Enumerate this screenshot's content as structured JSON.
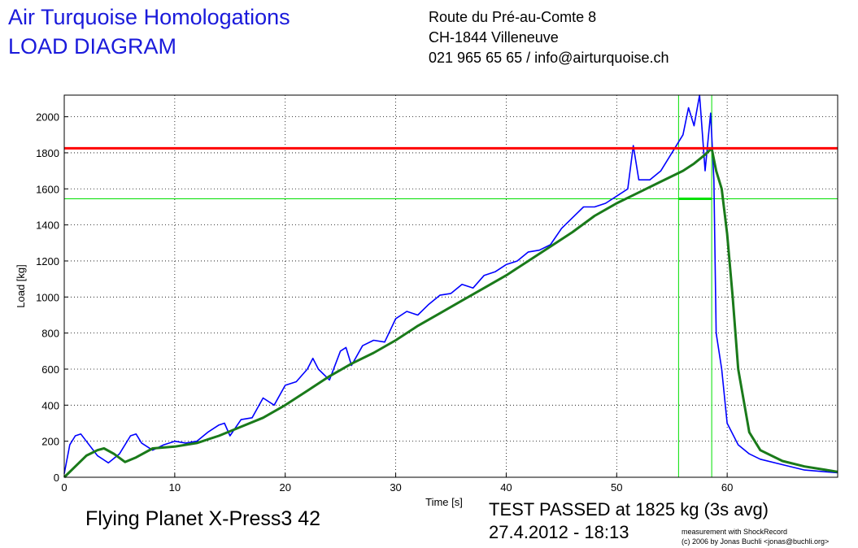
{
  "header": {
    "title_line1": "Air Turquoise Homologations",
    "title_line2": "LOAD DIAGRAM",
    "address_line1": "Route du Pré-au-Comte 8",
    "address_line2": "CH-1844 Villeneuve",
    "address_line3": "021 965 65 65 / info@airturquoise.ch"
  },
  "footer": {
    "glider": "Flying Planet X-Press3 42",
    "result": "TEST PASSED at 1825 kg (3s avg)",
    "datetime": "27.4.2012 - 18:13",
    "credit_line1": "measurement with ShockRecord",
    "credit_line2": "(c) 2006 by Jonas Buchli <jonas@buchli.org>"
  },
  "colors": {
    "raw": "#0000ff",
    "avg": "#1a7a1a",
    "limit": "#ff0000",
    "window": "#00e000",
    "title": "#1a1adb"
  },
  "chart_data": {
    "type": "line",
    "xlabel": "Time [s]",
    "ylabel": "Load [kg]",
    "xlim": [
      0,
      70
    ],
    "ylim": [
      0,
      2120
    ],
    "xticks": [
      0,
      10,
      20,
      30,
      40,
      50,
      60
    ],
    "yticks": [
      0,
      200,
      400,
      600,
      800,
      1000,
      1200,
      1400,
      1600,
      1800,
      2000
    ],
    "grid": true,
    "reference_line": 1825,
    "avg_window": {
      "x_start": 55.6,
      "x_end": 58.6,
      "level": 1545
    },
    "series": [
      {
        "key": "raw",
        "x": [
          0,
          0.5,
          1,
          1.5,
          2,
          3,
          4,
          5,
          6,
          6.5,
          7,
          8,
          9,
          10,
          11,
          12,
          13,
          14,
          14.5,
          15,
          16,
          17,
          18,
          19,
          20,
          21,
          22,
          22.5,
          23,
          24,
          25,
          25.5,
          26,
          27,
          28,
          29,
          30,
          31,
          32,
          33,
          34,
          35,
          36,
          37,
          38,
          39,
          40,
          41,
          42,
          43,
          44,
          45,
          46,
          47,
          48,
          49,
          50,
          51,
          51.5,
          52,
          53,
          54,
          55,
          56,
          56.5,
          57,
          57.5,
          58,
          58.5,
          58.8,
          59,
          59.5,
          60,
          61,
          62,
          63,
          65,
          67,
          70
        ],
        "y": [
          20,
          180,
          230,
          240,
          200,
          120,
          80,
          130,
          230,
          240,
          190,
          150,
          180,
          200,
          190,
          200,
          250,
          290,
          300,
          230,
          320,
          330,
          440,
          400,
          510,
          530,
          600,
          660,
          600,
          540,
          700,
          720,
          620,
          730,
          760,
          750,
          880,
          920,
          900,
          960,
          1010,
          1020,
          1070,
          1050,
          1120,
          1140,
          1180,
          1200,
          1250,
          1260,
          1290,
          1380,
          1440,
          1500,
          1500,
          1520,
          1560,
          1600,
          1840,
          1650,
          1650,
          1700,
          1800,
          1900,
          2050,
          1950,
          2120,
          1700,
          2020,
          1650,
          800,
          600,
          300,
          180,
          130,
          100,
          70,
          40,
          25
        ]
      },
      {
        "key": "avg",
        "x": [
          0,
          1,
          2,
          3,
          3.6,
          4.5,
          5.5,
          6.5,
          8,
          10,
          12,
          14,
          16,
          18,
          20,
          22,
          24,
          26,
          28,
          30,
          32,
          34,
          36,
          38,
          40,
          42,
          44,
          46,
          48,
          50,
          52,
          54,
          56,
          57,
          58,
          58.6,
          59,
          59.5,
          60,
          60.5,
          61,
          62,
          63,
          65,
          67,
          70
        ],
        "y": [
          0,
          60,
          120,
          150,
          160,
          130,
          85,
          110,
          160,
          170,
          190,
          230,
          280,
          330,
          400,
          480,
          560,
          630,
          690,
          760,
          840,
          910,
          980,
          1050,
          1120,
          1200,
          1280,
          1360,
          1450,
          1520,
          1580,
          1640,
          1700,
          1740,
          1790,
          1825,
          1700,
          1600,
          1350,
          1000,
          600,
          250,
          150,
          90,
          60,
          30
        ]
      }
    ]
  }
}
